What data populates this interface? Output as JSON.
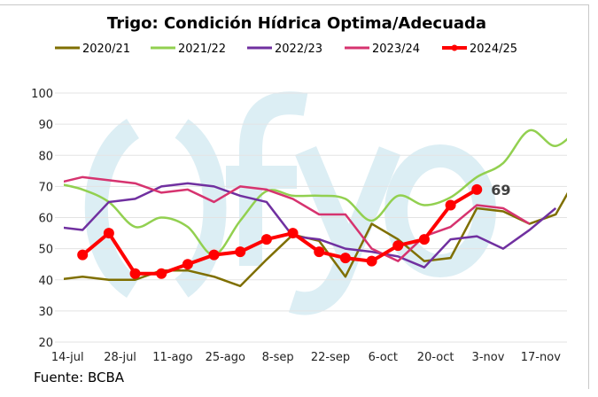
{
  "chart_data": {
    "type": "line",
    "title": "Trigo: Condición Hídrica Optima/Adecuada",
    "source": "Fuente: BCBA",
    "watermark": "ofyo",
    "xlabel": "",
    "ylabel": "",
    "ylim": [
      20,
      100
    ],
    "yticks": [
      20,
      30,
      40,
      50,
      60,
      70,
      80,
      90,
      100
    ],
    "xlim": [
      "2024-07-13",
      "2024-11-24"
    ],
    "xtick_dates": [
      "2024-07-14",
      "2024-07-28",
      "2024-08-11",
      "2024-08-25",
      "2024-09-08",
      "2024-09-22",
      "2024-10-06",
      "2024-10-20",
      "2024-11-03",
      "2024-11-17"
    ],
    "xtick_labels": [
      "14-jul",
      "28-jul",
      "11-ago",
      "25-ago",
      "8-sep",
      "22-sep",
      "6-oct",
      "20-oct",
      "3-nov",
      "17-nov"
    ],
    "grid": "horizontal",
    "legend": "top",
    "x": [
      "2024-07-11",
      "2024-07-18",
      "2024-07-25",
      "2024-08-01",
      "2024-08-08",
      "2024-08-15",
      "2024-08-22",
      "2024-08-29",
      "2024-09-05",
      "2024-09-12",
      "2024-09-19",
      "2024-09-26",
      "2024-10-03",
      "2024-10-10",
      "2024-10-17",
      "2024-10-24",
      "2024-10-31",
      "2024-11-07",
      "2024-11-14",
      "2024-11-21",
      "2024-11-28"
    ],
    "series": [
      {
        "name": "2020/21",
        "color": "#7f6f00",
        "smooth": false,
        "markers": false,
        "values": [
          40,
          41,
          40,
          40,
          43,
          43,
          41,
          38,
          46.5,
          54.5,
          52.5,
          41,
          58,
          53,
          46,
          47,
          63,
          62,
          58,
          61,
          76
        ]
      },
      {
        "name": "2021/22",
        "color": "#92d050",
        "smooth": true,
        "markers": false,
        "values": [
          71,
          69,
          65,
          57,
          60,
          57,
          48,
          59,
          68.5,
          67,
          67,
          66,
          59,
          67,
          64,
          66.5,
          73,
          77.5,
          88,
          83,
          90
        ]
      },
      {
        "name": "2022/23",
        "color": "#7030a0",
        "smooth": false,
        "markers": false,
        "values": [
          57,
          56,
          65,
          66,
          70,
          71,
          70,
          67,
          65,
          54,
          53,
          50,
          49,
          47.5,
          44,
          53,
          54,
          50,
          56,
          63,
          null
        ]
      },
      {
        "name": "2023/24",
        "color": "#d6336f",
        "smooth": false,
        "markers": false,
        "values": [
          71,
          73,
          72,
          71,
          68,
          69,
          65,
          70,
          69,
          66,
          61,
          61,
          50,
          46,
          54,
          57,
          64,
          63,
          58,
          null,
          null
        ]
      },
      {
        "name": "2024/25",
        "color": "#ff0000",
        "smooth": false,
        "markers": true,
        "values": [
          null,
          48,
          55,
          42,
          42,
          45,
          48,
          49,
          53,
          55,
          49,
          47,
          46,
          51,
          53,
          64,
          69,
          null,
          null,
          null,
          null
        ],
        "last_label": "69"
      }
    ]
  }
}
